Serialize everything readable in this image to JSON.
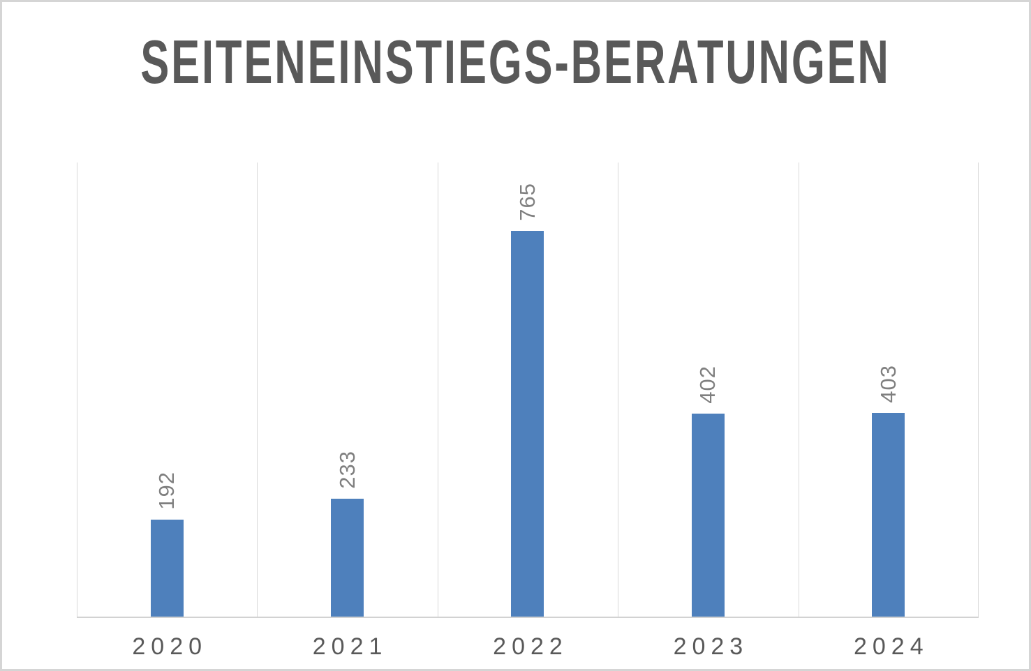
{
  "chart_data": {
    "type": "bar",
    "title": "SEITENEINSTIEGS-BERATUNGEN",
    "categories": [
      "2020",
      "2021",
      "2022",
      "2023",
      "2024"
    ],
    "values": [
      192,
      233,
      765,
      402,
      403
    ],
    "data_labels": [
      "192",
      "233",
      "765",
      "402",
      "403"
    ],
    "xlabel": "",
    "ylabel": "",
    "ylim": [
      0,
      900
    ],
    "y_axis_visible": false,
    "legend": "none",
    "grid": "vertical-category-separators",
    "data_label_rotation": -90,
    "colors": {
      "bar": "#4e80bc",
      "title": "#595959",
      "data_label": "#7f7f7f",
      "tick_label": "#595959",
      "gridline": "#d9d9d9",
      "axis_line": "#d2d2d2",
      "frame_border": "#d5d5d5",
      "background": "#ffffff"
    }
  }
}
